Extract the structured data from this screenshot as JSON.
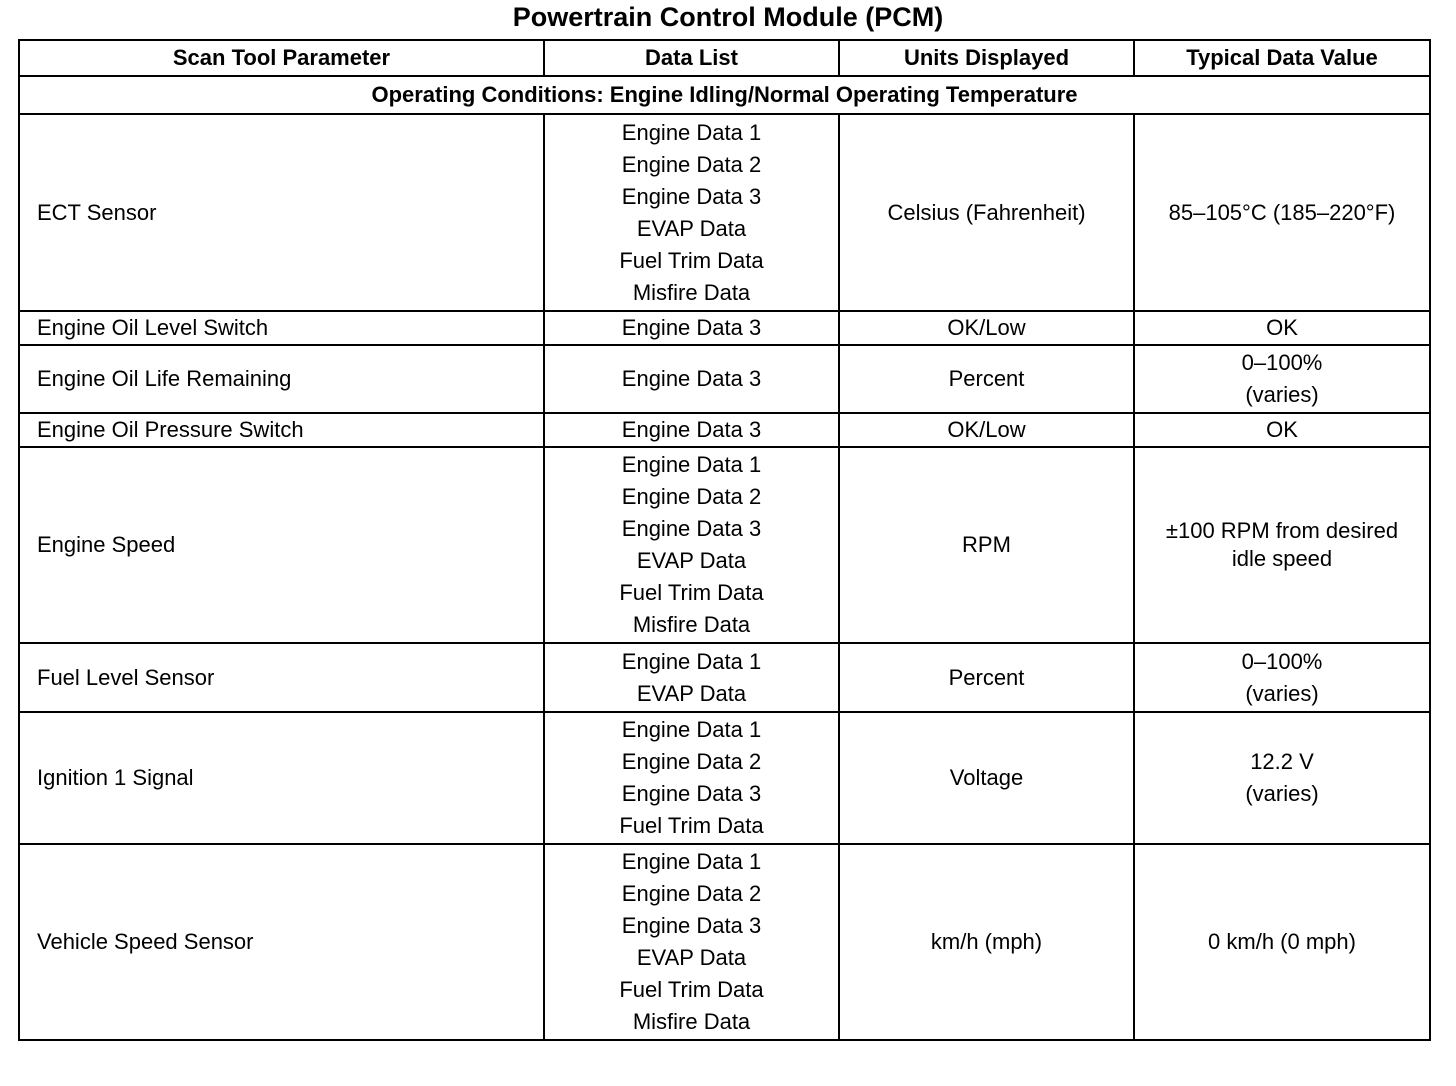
{
  "title": "Powertrain Control Module (PCM)",
  "table": {
    "columns": [
      "Scan Tool Parameter",
      "Data List",
      "Units Displayed",
      "Typical Data Value"
    ],
    "section": "Operating Conditions: Engine Idling/Normal Operating Temperature",
    "rows": [
      {
        "parameter": "ECT Sensor",
        "data_list": [
          "Engine Data 1",
          "Engine Data 2",
          "Engine Data 3",
          "EVAP Data",
          "Fuel Trim Data",
          "Misfire Data"
        ],
        "units": "Celsius (Fahrenheit)",
        "typical": [
          "85–105°C (185–220°F)"
        ]
      },
      {
        "parameter": "Engine Oil Level Switch",
        "data_list": [
          "Engine Data 3"
        ],
        "units": "OK/Low",
        "typical": [
          "OK"
        ]
      },
      {
        "parameter": "Engine Oil Life Remaining",
        "data_list": [
          "Engine Data 3"
        ],
        "units": "Percent",
        "typical": [
          "0–100%",
          "(varies)"
        ]
      },
      {
        "parameter": "Engine Oil Pressure Switch",
        "data_list": [
          "Engine Data 3"
        ],
        "units": "OK/Low",
        "typical": [
          "OK"
        ]
      },
      {
        "parameter": "Engine Speed",
        "data_list": [
          "Engine Data 1",
          "Engine Data 2",
          "Engine Data 3",
          "EVAP Data",
          "Fuel Trim Data",
          "Misfire Data"
        ],
        "units": "RPM",
        "typical": [
          "±100 RPM from desired idle speed"
        ]
      },
      {
        "parameter": "Fuel Level Sensor",
        "data_list": [
          "Engine Data 1",
          "EVAP Data"
        ],
        "units": "Percent",
        "typical": [
          "0–100%",
          "(varies)"
        ]
      },
      {
        "parameter": "Ignition 1 Signal",
        "data_list": [
          "Engine Data 1",
          "Engine Data 2",
          "Engine Data 3",
          "Fuel Trim Data"
        ],
        "units": "Voltage",
        "typical": [
          "12.2 V",
          "(varies)"
        ]
      },
      {
        "parameter": "Vehicle Speed Sensor",
        "data_list": [
          "Engine Data 1",
          "Engine Data 2",
          "Engine Data 3",
          "EVAP Data",
          "Fuel Trim Data",
          "Misfire Data"
        ],
        "units": "km/h (mph)",
        "typical": [
          "0 km/h (0 mph)"
        ]
      }
    ]
  }
}
